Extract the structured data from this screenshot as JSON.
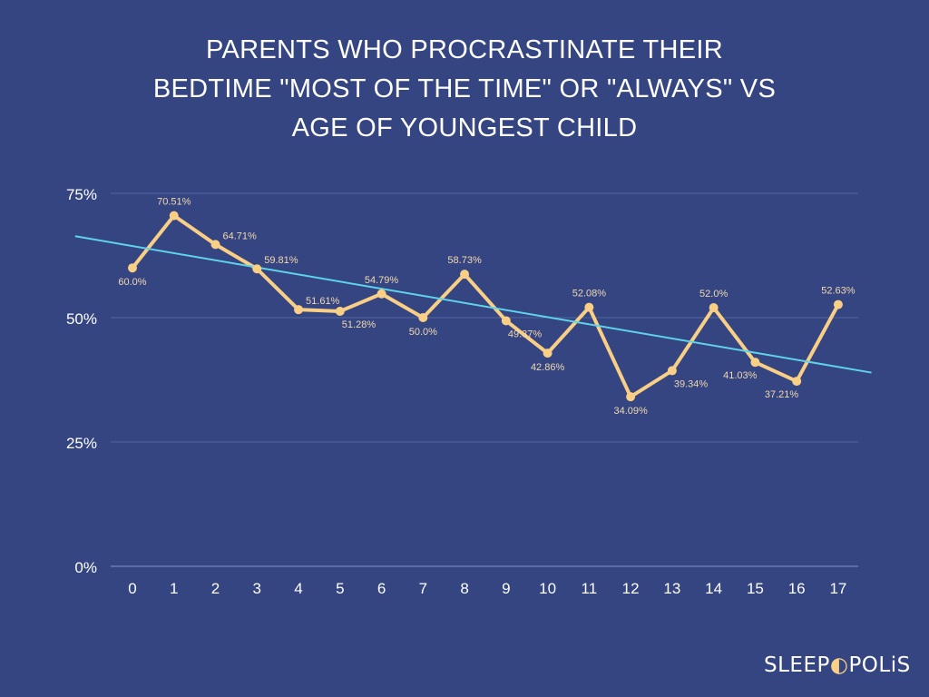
{
  "chart_data": {
    "type": "line",
    "title_lines": [
      "PARENTS WHO PROCRASTINATE THEIR",
      "BEDTIME \"MOST OF THE TIME\" OR \"ALWAYS\" VS",
      "AGE OF YOUNGEST CHILD"
    ],
    "xlabel": "Age of youngest child",
    "ylabel": "",
    "x": [
      0,
      1,
      2,
      3,
      4,
      5,
      6,
      7,
      8,
      9,
      10,
      11,
      12,
      13,
      14,
      15,
      16,
      17
    ],
    "xticks": [
      "0",
      "1",
      "2",
      "3",
      "4",
      "5",
      "6",
      "7",
      "8",
      "9",
      "10",
      "11",
      "12",
      "13",
      "14",
      "15",
      "16",
      "17"
    ],
    "ylim": [
      0,
      75
    ],
    "yticks": [
      {
        "value": 0,
        "label": "0%"
      },
      {
        "value": 25,
        "label": "25%"
      },
      {
        "value": 50,
        "label": "50%"
      },
      {
        "value": 75,
        "label": "75%"
      }
    ],
    "grid": true,
    "series": [
      {
        "name": "Parents procrastinating bedtime",
        "color": "#f9cf85",
        "values": [
          60.0,
          70.51,
          64.71,
          59.81,
          51.61,
          51.28,
          54.79,
          50.0,
          58.73,
          49.37,
          42.86,
          52.08,
          34.09,
          39.34,
          52.0,
          41.03,
          37.21,
          52.63
        ],
        "labels": [
          "60.0%",
          "70.51%",
          "64.71%",
          "59.81%",
          "51.61%",
          "51.28%",
          "54.79%",
          "50.0%",
          "58.73%",
          "49.37%",
          "42.86%",
          "52.08%",
          "34.09%",
          "39.34%",
          "52.0%",
          "41.03%",
          "37.21%",
          "52.63%"
        ],
        "label_placement": [
          "below",
          "above",
          "above-right",
          "above-right",
          "above-right",
          "below-right",
          "above",
          "below",
          "above",
          "below-right",
          "below",
          "above",
          "below",
          "below-right",
          "above",
          "below-left",
          "below-left",
          "above"
        ]
      }
    ],
    "trendline": {
      "color": "#5fd3e8",
      "slope": -1.43,
      "intercept": 64.4,
      "x_range": [
        -1.38,
        17.8
      ]
    }
  },
  "brand": {
    "logo_text": "SLEEPOPOLiS",
    "background": "#344582"
  }
}
